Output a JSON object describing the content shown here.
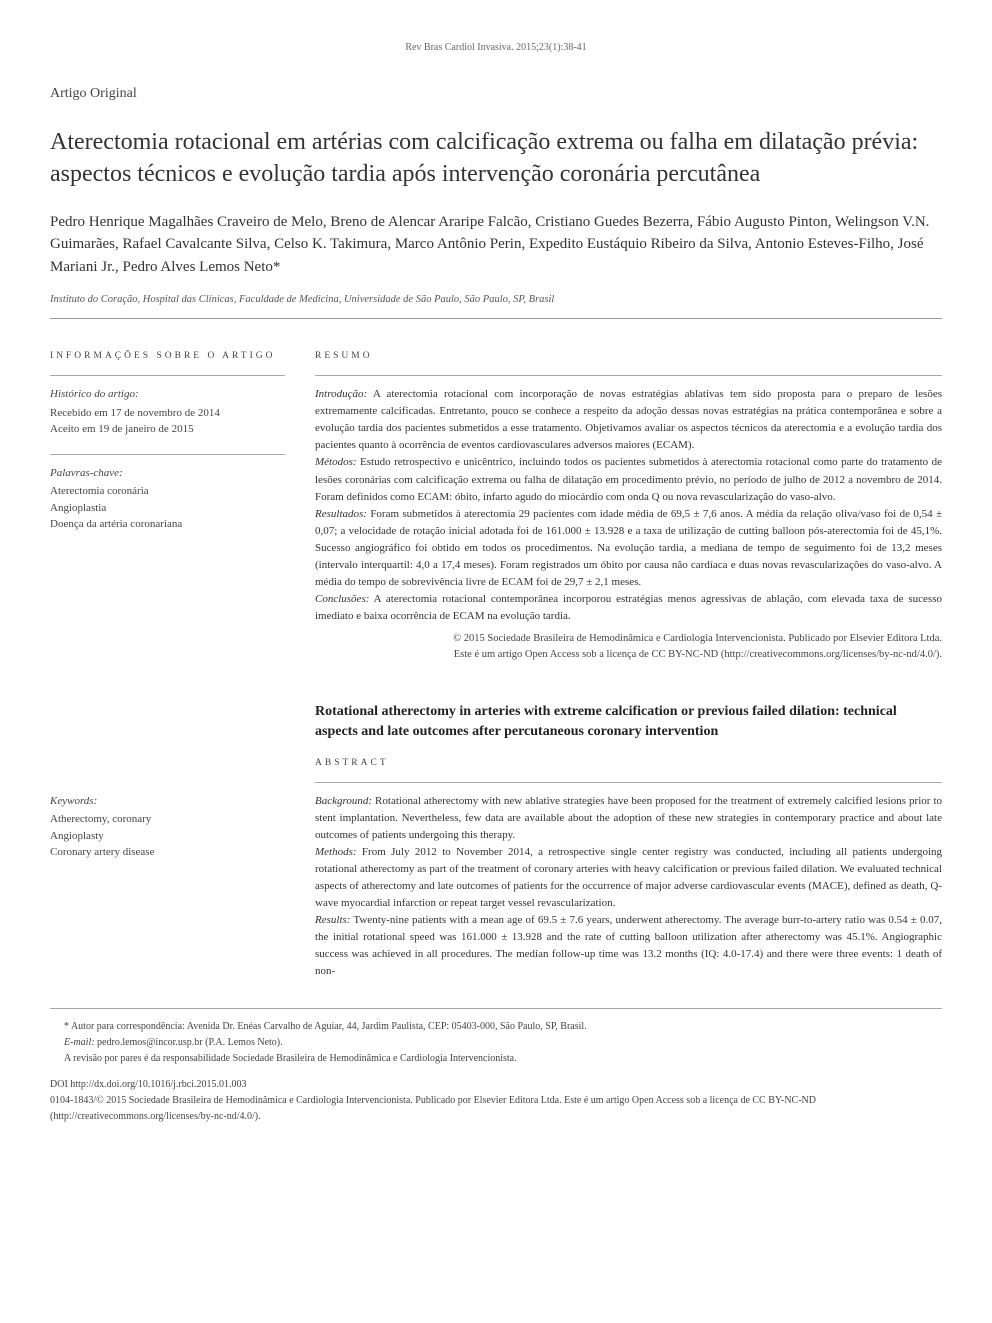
{
  "journal_ref": "Rev Bras Cardiol Invasiva. 2015;23(1):38-41",
  "article_type": "Artigo Original",
  "title": "Aterectomia rotacional em artérias com calcificação extrema ou falha em dilatação prévia: aspectos técnicos e evolução tardia após intervenção coronária percutânea",
  "authors": "Pedro Henrique Magalhães Craveiro de Melo, Breno de Alencar Araripe Falcão, Cristiano Guedes Bezerra, Fábio Augusto Pinton, Welingson V.N. Guimarães, Rafael Cavalcante Silva, Celso K. Takimura, Marco Antônio Perin, Expedito Eustáquio Ribeiro da Silva, Antonio Esteves-Filho, José Mariani Jr., Pedro Alves Lemos Neto*",
  "affiliation": "Instituto do Coração, Hospital das Clínicas, Faculdade de Medicina, Universidade de São Paulo, São Paulo, SP, Brasil",
  "info_heading": "INFORMAÇÕES SOBRE O ARTIGO",
  "history": {
    "label": "Histórico do artigo:",
    "received": "Recebido em 17 de novembro de 2014",
    "accepted": "Aceito em 19 de janeiro de 2015"
  },
  "keywords_pt": {
    "label": "Palavras-chave:",
    "k1": "Aterectomia coronária",
    "k2": "Angioplastia",
    "k3": "Doença da artéria coronariana"
  },
  "resumo_heading": "RESUMO",
  "resumo": {
    "intro_label": "Introdução:",
    "intro": " A aterectomia rotacional com incorporação de novas estratégias ablativas tem sido proposta para o preparo de lesões extremamente calcificadas. Entretanto, pouco se conhece a respeito da adoção dessas novas estratégias na prática contemporânea e sobre a evolução tardia dos pacientes submetidos a esse tratamento. Objetivamos avaliar os aspectos técnicos da aterectomia e a evolução tardia dos pacientes quanto à ocorrência de eventos cardiovasculares adversos maiores (ECAM).",
    "methods_label": "Métodos:",
    "methods": " Estudo retrospectivo e unicêntrico, incluindo todos os pacientes submetidos à aterectomia rotacional como parte do tratamento de lesões coronárias com calcificação extrema ou falha de dilatação em procedimento prévio, no período de julho de 2012 a novembro de 2014. Foram definidos como ECAM: óbito, infarto agudo do miocárdio com onda Q ou nova revascularização do vaso-alvo.",
    "results_label": "Resultados:",
    "results": " Foram submetidos à aterectomia 29 pacientes com idade média de 69,5 ± 7,6 anos. A média da relação oliva/vaso foi de 0,54 ± 0,07; a velocidade de rotação inicial adotada foi de 161.000 ± 13.928 e a taxa de utilização de cutting balloon pós-aterectomia foi de 45,1%. Sucesso angiográfico foi obtido em todos os procedimentos. Na evolução tardia, a mediana de tempo de seguimento foi de 13,2 meses (intervalo interquartil: 4,0 a 17,4 meses). Foram registrados um óbito por causa não cardíaca e duas novas revascularizações do vaso-alvo. A média do tempo de sobrevivência livre de ECAM foi de 29,7 ± 2,1 meses.",
    "concl_label": "Conclusões:",
    "concl": " A aterectomia rotacional contemporânea incorporou estratégias menos agressivas de ablação, com elevada taxa de sucesso imediato e baixa ocorrência de ECAM na evolução tardia."
  },
  "copyright_pt": {
    "line1": "© 2015 Sociedade Brasileira de Hemodinâmica e Cardiologia Intervencionista. Publicado por Elsevier Editora Ltda.",
    "line2": "Este é um artigo Open Access sob a licença de CC BY-NC-ND (http://creativecommons.org/licenses/by-nc-nd/4.0/)."
  },
  "en_title": "Rotational atherectomy in arteries with extreme calcification or previous failed dilation: technical aspects and late outcomes after percutaneous coronary intervention",
  "abstract_heading": "ABSTRACT",
  "keywords_en": {
    "label": "Keywords:",
    "k1": "Atherectomy, coronary",
    "k2": "Angioplasty",
    "k3": "Coronary artery disease"
  },
  "abstract": {
    "bg_label": "Background:",
    "bg": " Rotational atherectomy with new ablative strategies have been proposed for the treatment of extremely calcified lesions prior to stent implantation. Nevertheless, few data are available about the adoption of these new strategies in contemporary practice and about late outcomes of patients undergoing this therapy.",
    "methods_label": "Methods:",
    "methods": " From July 2012 to November 2014, a retrospective single center registry was conducted, including all patients undergoing rotational atherectomy as part of the treatment of coronary arteries with heavy calcification or previous failed dilation. We evaluated technical aspects of atherectomy and late outcomes of patients for the occurrence of major adverse cardiovascular events (MACE), defined as death, Q-wave myocardial infarction or repeat target vessel revascularization.",
    "results_label": "Results:",
    "results": " Twenty-nine patients with a mean age of 69.5 ± 7.6 years, underwent atherectomy. The average burr-to-artery ratio was 0.54 ± 0.07, the initial rotational speed was 161.000 ± 13.928 and the rate of cutting balloon utilization after atherectomy was 45.1%. Angiographic success was achieved in all procedures. The median follow-up time was 13.2 months (IQ: 4.0-17.4) and there were three events: 1 death of non-"
  },
  "footer": {
    "corresp": "* Autor para correspondência: Avenida Dr. Enéas Carvalho de Aguiar, 44, Jardim Paulista, CEP: 05403-000, São Paulo, SP, Brasil.",
    "email_label": "E-mail:",
    "email": "pedro.lemos@incor.usp.br (P.A. Lemos Neto).",
    "peer": "A revisão por pares é da responsabilidade Sociedade Brasileira de Hemodinâmica e Cardiologia Intervencionista.",
    "doi": "DOI http://dx.doi.org/10.1016/j.rbci.2015.01.003",
    "issn": "0104-1843/© 2015 Sociedade Brasileira de Hemodinâmica e Cardiologia Intervencionista. Publicado por Elsevier Editora Ltda. Este é um artigo Open Access sob a licença de CC BY-NC-ND (http://creativecommons.org/licenses/by-nc-nd/4.0/)."
  }
}
